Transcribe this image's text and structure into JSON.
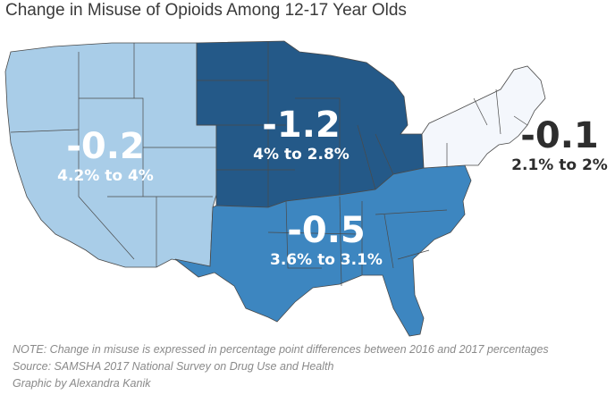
{
  "title": "Change in Misuse of Opioids Among 12-17 Year Olds",
  "colors": {
    "west": "#a9cde8",
    "midwest": "#245988",
    "south": "#3d86c0",
    "northeast": "#f4f7fc"
  },
  "regions": {
    "west": {
      "change": "-0.2",
      "range": "4.2% to 4%"
    },
    "midwest": {
      "change": "-1.2",
      "range": "4% to 2.8%"
    },
    "south": {
      "change": "-0.5",
      "range": "3.6% to 3.1%"
    },
    "northeast": {
      "change": "-0.1",
      "range": "2.1% to 2%"
    }
  },
  "notes": {
    "note": "NOTE: Change in misuse is expressed in percentage point differences between 2016 and 2017 percentages",
    "source": "Source: SAMSHA 2017 National Survey on Drug Use and Health",
    "credit": "Graphic by Alexandra Kanik"
  }
}
